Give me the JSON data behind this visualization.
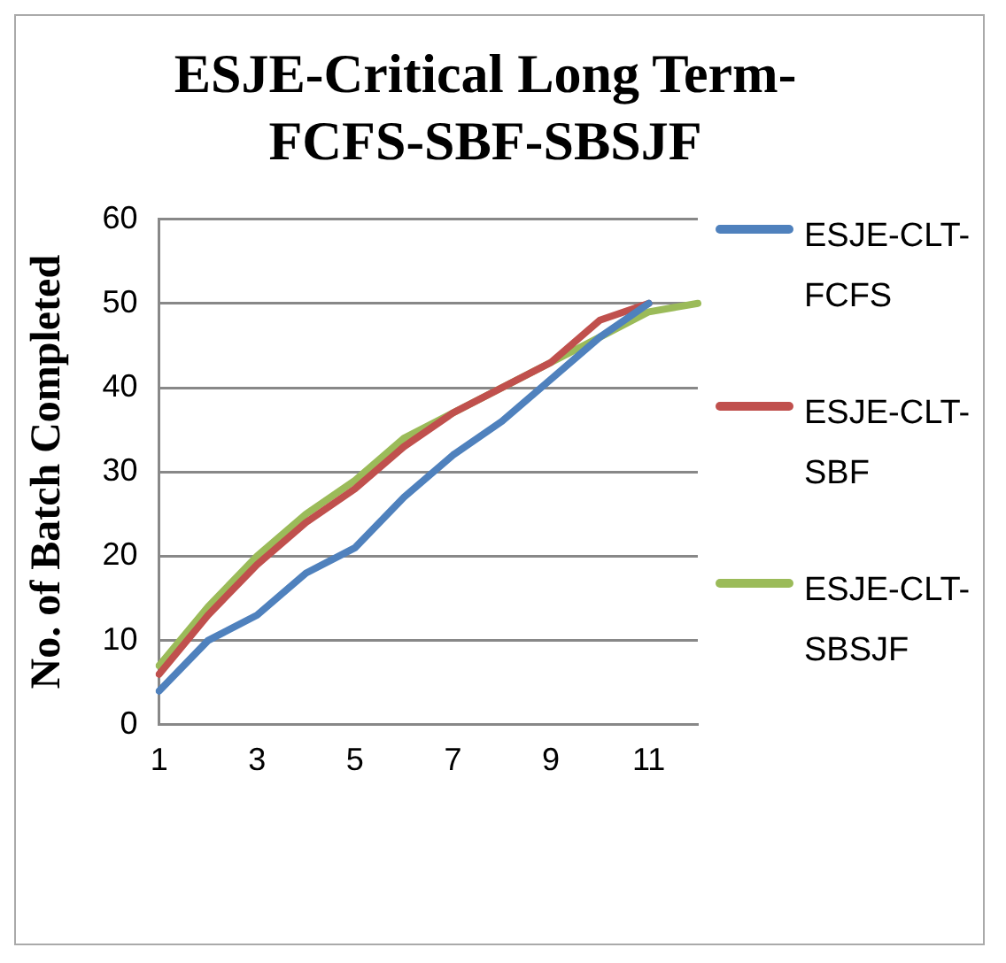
{
  "chart_data": {
    "type": "line",
    "title": "ESJE-Critical Long Term-FCFS-SBF-SBSJF",
    "ylabel": "No. of Batch Completed",
    "categories": [
      "1",
      null,
      "3",
      null,
      "5",
      null,
      "7",
      null,
      "9",
      null,
      "11",
      null
    ],
    "series": [
      {
        "name": "ESJE-CLT-FCFS",
        "color": "#4f81bd",
        "values": [
          4,
          10,
          13,
          18,
          21,
          27,
          32,
          36,
          41,
          46,
          50,
          null
        ]
      },
      {
        "name": "ESJE-CLT-SBF",
        "color": "#c0504d",
        "values": [
          6,
          13,
          19,
          24,
          28,
          33,
          37,
          40,
          43,
          48,
          50,
          null
        ]
      },
      {
        "name": "ESJE-CLT-SBSJF",
        "color": "#9bbb59",
        "values": [
          7,
          14,
          20,
          25,
          29,
          34,
          37,
          40,
          43,
          46,
          49,
          50
        ]
      }
    ],
    "ylim": [
      0,
      60
    ],
    "yticks": [
      0,
      10,
      20,
      30,
      40,
      50,
      60
    ],
    "grid": "y",
    "legend": "right",
    "marker": "none",
    "line_style": "solid"
  }
}
